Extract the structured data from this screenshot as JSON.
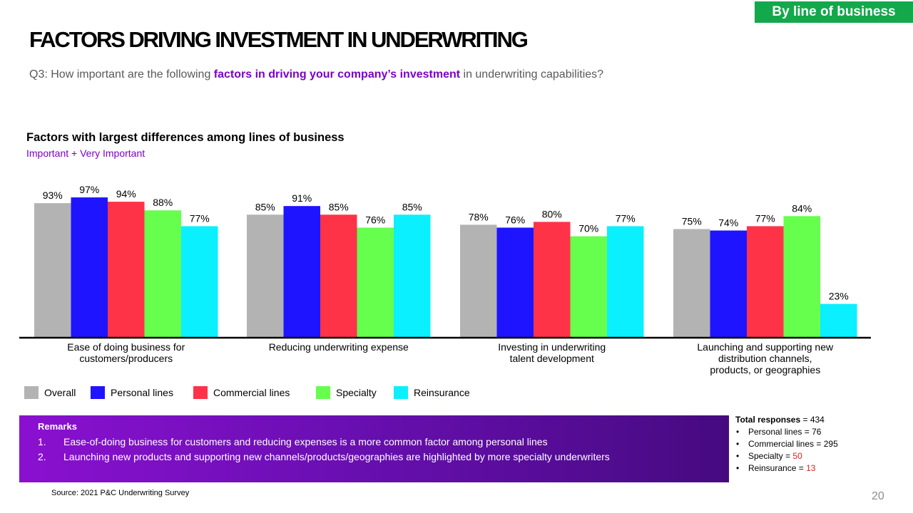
{
  "badge": "By line of business",
  "title": "FACTORS DRIVING INVESTMENT IN UNDERWRITING",
  "question": {
    "prefix": "Q3: How important are the following ",
    "highlight": "factors in driving your company’s investment",
    "suffix": " in underwriting capabilities?"
  },
  "chart_data": {
    "type": "bar",
    "title": "Factors with largest differences among lines of business",
    "subtitle": "Important + Very Important",
    "categories": [
      [
        "Ease of doing business for",
        "customers/producers"
      ],
      [
        "Reducing underwriting expense"
      ],
      [
        "Investing in underwriting",
        "talent development"
      ],
      [
        "Launching and supporting new",
        "distribution channels,",
        "products, or geographies"
      ]
    ],
    "series": [
      {
        "name": "Overall",
        "color": "#b3b3b3",
        "values": [
          93,
          85,
          78,
          75
        ]
      },
      {
        "name": "Personal lines",
        "color": "#1f14ff",
        "values": [
          97,
          91,
          76,
          74
        ]
      },
      {
        "name": "Commercial lines",
        "color": "#ff3347",
        "values": [
          94,
          85,
          80,
          77
        ]
      },
      {
        "name": "Specialty",
        "color": "#66ff4d",
        "values": [
          88,
          76,
          70,
          84
        ]
      },
      {
        "name": "Reinsurance",
        "color": "#0af0ff",
        "values": [
          77,
          85,
          77,
          23
        ]
      }
    ],
    "value_suffix": "%",
    "ylim": [
      0,
      100
    ],
    "grid": false,
    "legend": "bottom-left"
  },
  "remarks": {
    "title": "Remarks",
    "items": [
      {
        "num": "1.",
        "text": "Ease-of-doing business for customers and reducing expenses is a more common factor among personal lines"
      },
      {
        "num": "2.",
        "text": "Launching new products and supporting new channels/products/geographies are highlighted by more specialty underwriters"
      }
    ]
  },
  "totals": {
    "label": "Total responses",
    "total": " = 434",
    "items": [
      {
        "name": "Personal lines",
        "eq": " = ",
        "value": "76",
        "highlight": false
      },
      {
        "name": "Commercial lines",
        "eq": " = ",
        "value": "295",
        "highlight": false
      },
      {
        "name": "Specialty",
        "eq": " = ",
        "value": "50",
        "highlight": true
      },
      {
        "name": "Reinsurance",
        "eq": " = ",
        "value": "13",
        "highlight": true
      }
    ]
  },
  "source": "Source: 2021 P&C Underwriting Survey",
  "page_number": "20"
}
